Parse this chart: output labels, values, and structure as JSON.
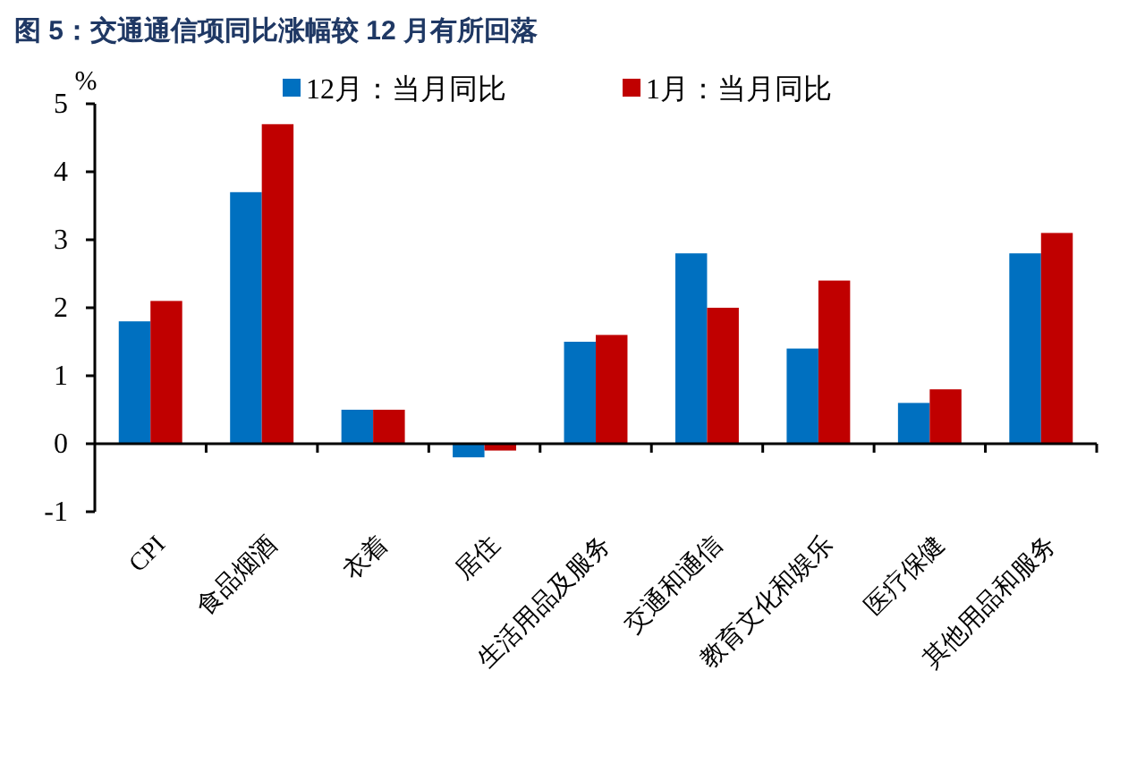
{
  "chart_data": {
    "type": "bar",
    "title": "图 5：交通通信项同比涨幅较 12 月有所回落",
    "ylabel": "%",
    "categories": [
      "CPI",
      "食品烟酒",
      "衣着",
      "居住",
      "生活用品及服务",
      "交通和通信",
      "教育文化和娱乐",
      "医疗保健",
      "其他用品和服务"
    ],
    "series": [
      {
        "name": "12月：当月同比",
        "color": "#0070c0",
        "values": [
          1.8,
          3.7,
          0.5,
          -0.2,
          1.5,
          2.8,
          1.4,
          0.6,
          2.8
        ]
      },
      {
        "name": "1月：当月同比",
        "color": "#c00000",
        "values": [
          2.1,
          4.7,
          0.5,
          -0.1,
          1.6,
          2.0,
          2.4,
          0.8,
          3.1
        ]
      }
    ],
    "ylim": [
      -1,
      5
    ],
    "yticks": [
      -1,
      0,
      1,
      2,
      3,
      4,
      5
    ],
    "grid": false,
    "legend": "top",
    "ref_lines": [
      {
        "axis": "y",
        "value": 0,
        "color": "#000000"
      }
    ]
  }
}
